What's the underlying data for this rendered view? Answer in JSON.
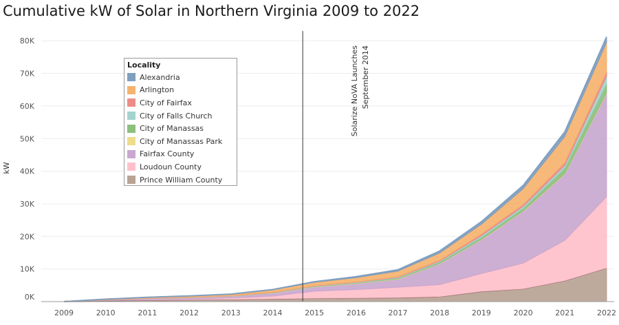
{
  "title": "Cumulative kW of Solar in Northern Virginia 2009 to 2022",
  "chart_data": {
    "type": "area",
    "stacked": true,
    "title": "Cumulative kW of Solar in Northern Virginia 2009 to 2022",
    "xlabel": "",
    "ylabel": "kW",
    "x": [
      "2009",
      "2010",
      "2011",
      "2012",
      "2013",
      "2014",
      "2015",
      "2016",
      "2017",
      "2018",
      "2019",
      "2020",
      "2021",
      "2022"
    ],
    "ylim": [
      0,
      83000
    ],
    "yticks": [
      0,
      10000,
      20000,
      30000,
      40000,
      50000,
      60000,
      70000,
      80000
    ],
    "ytick_labels": [
      "0K",
      "10K",
      "20K",
      "30K",
      "40K",
      "50K",
      "60K",
      "70K",
      "80K"
    ],
    "grid": true,
    "legend_title": "Locality",
    "legend_position": "top-left",
    "series": [
      {
        "name": "Prince William County",
        "color": "#b9a394",
        "values": [
          0,
          150,
          300,
          420,
          550,
          700,
          900,
          1000,
          1100,
          1400,
          3000,
          3800,
          6300,
          10200
        ]
      },
      {
        "name": "Loudoun County",
        "color": "#ffc0cb",
        "values": [
          0,
          100,
          250,
          350,
          550,
          1000,
          2300,
          2700,
          3300,
          3800,
          5600,
          8000,
          12500,
          22000
        ]
      },
      {
        "name": "Fairfax County",
        "color": "#c9a8cf",
        "values": [
          0,
          300,
          450,
          520,
          600,
          1000,
          1400,
          1900,
          2600,
          6500,
          10500,
          16000,
          20500,
          31800
        ]
      },
      {
        "name": "City of Manassas Park",
        "color": "#eedc8a",
        "values": [
          0,
          0,
          0,
          0,
          0,
          0,
          0,
          0,
          0,
          0,
          0,
          0,
          0,
          100
        ]
      },
      {
        "name": "City of Manassas",
        "color": "#8cc07f",
        "values": [
          0,
          10,
          20,
          30,
          40,
          60,
          100,
          150,
          250,
          400,
          600,
          800,
          1700,
          2800
        ]
      },
      {
        "name": "City of Falls Church",
        "color": "#a4d2cd",
        "values": [
          0,
          10,
          20,
          30,
          40,
          60,
          100,
          150,
          200,
          300,
          500,
          600,
          800,
          2200
        ]
      },
      {
        "name": "City of Fairfax",
        "color": "#ee8c88",
        "values": [
          0,
          10,
          20,
          30,
          40,
          60,
          100,
          150,
          200,
          300,
          500,
          600,
          900,
          1400
        ]
      },
      {
        "name": "Arlington",
        "color": "#f6b36f",
        "values": [
          0,
          150,
          230,
          300,
          400,
          700,
          1000,
          1300,
          1700,
          2200,
          3000,
          4800,
          8000,
          9000
        ]
      },
      {
        "name": "Alexandria",
        "color": "#7f9fc1",
        "values": [
          0,
          20,
          40,
          60,
          80,
          120,
          200,
          300,
          400,
          600,
          800,
          1000,
          1400,
          1700
        ]
      }
    ],
    "annotation": {
      "at_x": 2014.72,
      "text_lines": [
        "Solarize NoVA Launches",
        "September 2014"
      ]
    }
  }
}
